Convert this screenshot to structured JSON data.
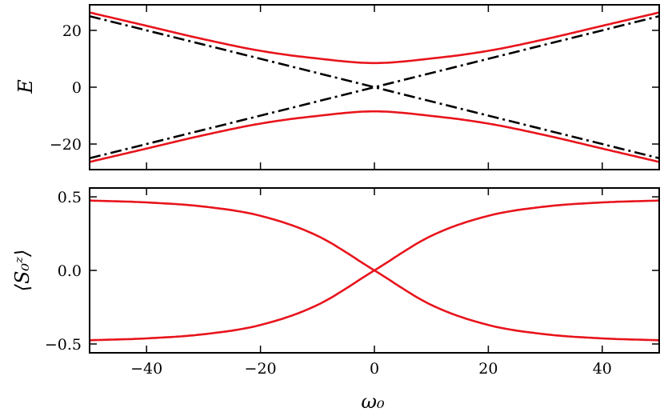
{
  "chart_data": [
    {
      "type": "line",
      "panel": "top",
      "xlabel": "",
      "ylabel": "E",
      "xlim": [
        -50,
        50
      ],
      "ylim": [
        -29,
        29
      ],
      "xticks": [
        -40,
        -20,
        0,
        20,
        40
      ],
      "yticks": [
        -20,
        0,
        20
      ],
      "ytick_labels": [
        "−20",
        "0",
        "20"
      ],
      "series": [
        {
          "color": "#e8141c",
          "style": "solid",
          "x": [
            -50,
            -40,
            -30,
            -20,
            -10,
            0,
            10,
            20,
            30,
            40,
            50
          ],
          "values": [
            26.3,
            21.6,
            16.9,
            12.8,
            10.1,
            8.5,
            10.1,
            12.8,
            16.9,
            21.6,
            26.3
          ]
        },
        {
          "color": "#e8141c",
          "style": "solid",
          "x": [
            -50,
            -40,
            -30,
            -20,
            -10,
            0,
            10,
            20,
            30,
            40,
            50
          ],
          "values": [
            -26.3,
            -21.6,
            -16.9,
            -12.8,
            -10.1,
            -8.5,
            -10.1,
            -12.8,
            -16.9,
            -21.6,
            -26.3
          ]
        },
        {
          "color": "#000000",
          "style": "dashdot",
          "x": [
            -50,
            50
          ],
          "values": [
            25,
            -25
          ]
        },
        {
          "color": "#000000",
          "style": "dashdot",
          "x": [
            -50,
            50
          ],
          "values": [
            -25,
            25
          ]
        }
      ]
    },
    {
      "type": "line",
      "panel": "bottom",
      "xlabel": "ω₀",
      "ylabel": "⟨S₀ᶻ⟩",
      "xlim": [
        -50,
        50
      ],
      "ylim": [
        -0.56,
        0.56
      ],
      "xticks": [
        -40,
        -20,
        0,
        20,
        40
      ],
      "xtick_labels": [
        "−40",
        "−20",
        "0",
        "20",
        "40"
      ],
      "yticks": [
        -0.5,
        0.0,
        0.5
      ],
      "ytick_labels": [
        "−0.5",
        "0.0",
        "0.5"
      ],
      "series": [
        {
          "color": "#e8141c",
          "style": "solid",
          "x": [
            -50,
            -40,
            -30,
            -20,
            -10,
            0,
            10,
            20,
            30,
            40,
            50
          ],
          "values": [
            0.475,
            0.462,
            0.434,
            0.371,
            0.235,
            0.0,
            -0.235,
            -0.371,
            -0.434,
            -0.462,
            -0.475
          ]
        },
        {
          "color": "#e8141c",
          "style": "solid",
          "x": [
            -50,
            -40,
            -30,
            -20,
            -10,
            0,
            10,
            20,
            30,
            40,
            50
          ],
          "values": [
            -0.475,
            -0.462,
            -0.434,
            -0.371,
            -0.235,
            0.0,
            0.235,
            0.371,
            0.434,
            0.462,
            0.475
          ]
        }
      ]
    }
  ]
}
